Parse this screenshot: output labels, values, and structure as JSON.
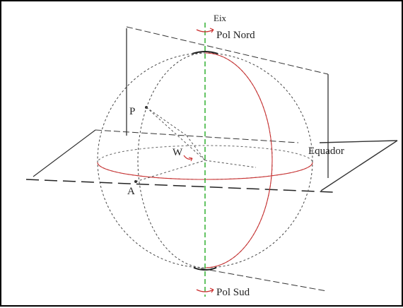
{
  "labels": {
    "axis": "Eix",
    "north_pole": "Pol Nord",
    "south_pole": "Pol Sud",
    "equator": "Equador",
    "point_p": "P",
    "point_a": "A",
    "angle_w": "W"
  },
  "colors": {
    "meridian": "#cc3333",
    "axis": "#22aa22",
    "arrow": "#cc3333",
    "line": "#333333"
  }
}
